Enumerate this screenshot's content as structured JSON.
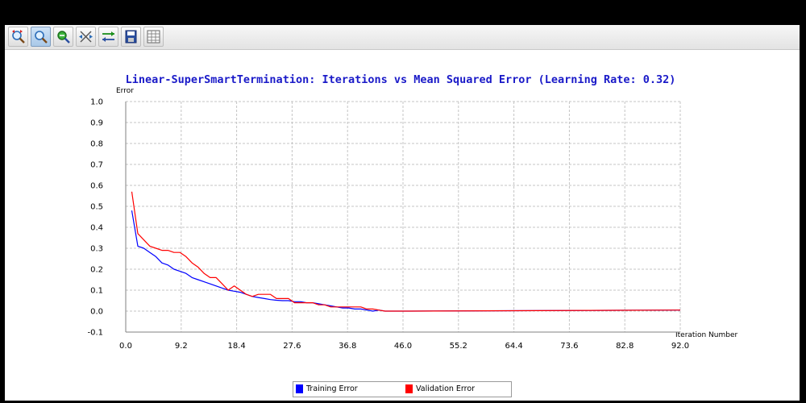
{
  "toolbar": {
    "buttons": [
      {
        "icon": "zoom-reset-icon"
      },
      {
        "icon": "zoom-icon"
      },
      {
        "icon": "zoom-out-icon"
      },
      {
        "icon": "move-icon"
      },
      {
        "icon": "set-range-icon"
      },
      {
        "icon": "save-icon"
      },
      {
        "icon": "table-icon"
      }
    ]
  },
  "chart_data": {
    "type": "line",
    "title": "Linear-SuperSmartTermination: Iterations vs Mean Squared Error (Learning Rate: 0.32)",
    "xlabel": "Iteration Number",
    "ylabel": "Error",
    "xlim": [
      0,
      92
    ],
    "ylim": [
      -0.1,
      1.0
    ],
    "xticks": [
      "0.0",
      "9.2",
      "18.4",
      "27.6",
      "36.8",
      "46.0",
      "55.2",
      "64.4",
      "73.6",
      "82.8",
      "92.0"
    ],
    "yticks": [
      "1.0",
      "0.9",
      "0.8",
      "0.7",
      "0.6",
      "0.5",
      "0.4",
      "0.3",
      "0.2",
      "0.1",
      "0.0",
      "-0.1"
    ],
    "grid": true,
    "legend_position": "bottom",
    "series": [
      {
        "name": "Training Error",
        "color": "#0000ff",
        "x": [
          1,
          2,
          3,
          4,
          5,
          6,
          7,
          8,
          9,
          10,
          11,
          12,
          13,
          14,
          15,
          16,
          17,
          18,
          19,
          20,
          21,
          22,
          23,
          24,
          25,
          26,
          27,
          28,
          29,
          30,
          31,
          32,
          33,
          34,
          35,
          36,
          37,
          38,
          39,
          40,
          41,
          42,
          43,
          44,
          46,
          92
        ],
        "values": [
          0.48,
          0.31,
          0.3,
          0.28,
          0.26,
          0.23,
          0.22,
          0.2,
          0.19,
          0.18,
          0.16,
          0.15,
          0.14,
          0.13,
          0.12,
          0.11,
          0.1,
          0.095,
          0.09,
          0.08,
          0.07,
          0.065,
          0.06,
          0.055,
          0.052,
          0.05,
          0.05,
          0.045,
          0.045,
          0.04,
          0.04,
          0.035,
          0.03,
          0.025,
          0.02,
          0.015,
          0.015,
          0.01,
          0.01,
          0.005,
          0.0,
          0.005,
          0.0,
          0.0,
          0.0,
          0.005
        ]
      },
      {
        "name": "Validation Error",
        "color": "#ff0000",
        "x": [
          1,
          2,
          3,
          4,
          5,
          6,
          7,
          8,
          9,
          10,
          11,
          12,
          13,
          14,
          15,
          16,
          17,
          18,
          19,
          20,
          21,
          22,
          23,
          24,
          25,
          26,
          27,
          28,
          29,
          30,
          31,
          32,
          33,
          34,
          35,
          36,
          37,
          38,
          39,
          40,
          41,
          42,
          43,
          44,
          46,
          92
        ],
        "values": [
          0.57,
          0.37,
          0.34,
          0.31,
          0.3,
          0.29,
          0.29,
          0.28,
          0.28,
          0.26,
          0.23,
          0.21,
          0.18,
          0.16,
          0.16,
          0.13,
          0.1,
          0.12,
          0.1,
          0.08,
          0.07,
          0.08,
          0.08,
          0.08,
          0.06,
          0.06,
          0.06,
          0.04,
          0.04,
          0.04,
          0.04,
          0.03,
          0.03,
          0.02,
          0.02,
          0.02,
          0.02,
          0.02,
          0.02,
          0.01,
          0.01,
          0.005,
          0.0,
          0.0,
          0.0,
          0.005
        ]
      }
    ]
  }
}
